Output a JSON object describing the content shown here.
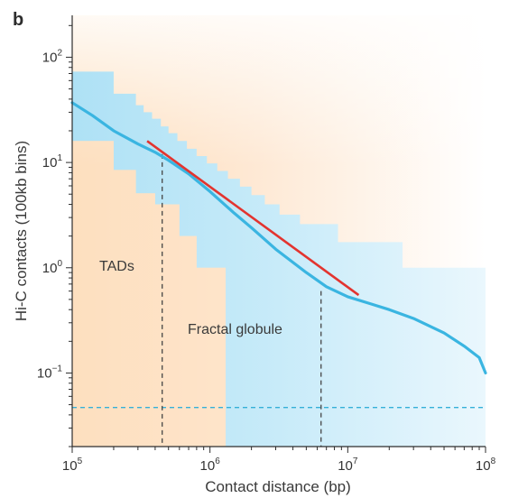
{
  "panel_label": "b",
  "colors": {
    "curve": "#3ab5e1",
    "fit": "#e3342f",
    "dashed_vertical": "#444444",
    "dashed_horizontal": "#35b0d8",
    "axis": "#2d2d2d",
    "orange_bg": "#fde7cf",
    "blue_band": "#c6eaf8"
  },
  "chart_data": {
    "type": "line",
    "xlabel": "Contact distance (bp)",
    "ylabel": "Hi-C contacts (100kb bins)",
    "xscale": "log",
    "yscale": "log",
    "xlim": [
      100000,
      100000000
    ],
    "ylim": [
      0.02,
      250
    ],
    "grid": false,
    "x_ticks": [
      {
        "base": "10",
        "exp": "5",
        "value": 100000
      },
      {
        "base": "10",
        "exp": "6",
        "value": 1000000
      },
      {
        "base": "10",
        "exp": "7",
        "value": 10000000
      },
      {
        "base": "10",
        "exp": "8",
        "value": 100000000
      }
    ],
    "y_ticks": [
      {
        "base": "10",
        "exp": "2",
        "value": 100
      },
      {
        "base": "10",
        "exp": "1",
        "value": 10
      },
      {
        "base": "10",
        "exp": "0",
        "value": 1
      },
      {
        "base": "10",
        "exp": "−1",
        "value": 0.1
      }
    ],
    "series": [
      {
        "x": [
          100000,
          140000,
          200000,
          300000,
          400000,
          500000,
          700000,
          1000000,
          1500000,
          2000000,
          3000000,
          5000000,
          7000000,
          10000000,
          15000000,
          20000000,
          30000000,
          50000000,
          70000000,
          90000000,
          100000000
        ],
        "y": [
          37,
          28,
          20,
          15,
          12.5,
          10.5,
          7.8,
          5.3,
          3.3,
          2.4,
          1.5,
          0.9,
          0.66,
          0.53,
          0.45,
          0.4,
          0.33,
          0.24,
          0.18,
          0.14,
          0.1
        ]
      }
    ],
    "fit_line": {
      "x": [
        350000,
        12000000
      ],
      "y": [
        16,
        0.55
      ]
    },
    "error_band": {
      "upper": [
        [
          100000,
          73
        ],
        [
          200000,
          73
        ],
        [
          200000,
          45
        ],
        [
          290000,
          45
        ],
        [
          290000,
          35
        ],
        [
          330000,
          35
        ],
        [
          330000,
          30
        ],
        [
          380000,
          30
        ],
        [
          380000,
          26
        ],
        [
          440000,
          26
        ],
        [
          440000,
          22
        ],
        [
          500000,
          22
        ],
        [
          500000,
          19
        ],
        [
          580000,
          19
        ],
        [
          580000,
          16
        ],
        [
          680000,
          16
        ],
        [
          680000,
          13.5
        ],
        [
          800000,
          13.5
        ],
        [
          800000,
          11.5
        ],
        [
          950000,
          11.5
        ],
        [
          950000,
          9.8
        ],
        [
          1130000,
          9.8
        ],
        [
          1130000,
          8.3
        ],
        [
          1350000,
          8.3
        ],
        [
          1350000,
          7
        ],
        [
          1650000,
          7
        ],
        [
          1650000,
          5.9
        ],
        [
          2000000,
          5.9
        ],
        [
          2000000,
          4.9
        ],
        [
          2500000,
          4.9
        ],
        [
          2500000,
          4
        ],
        [
          3200000,
          4
        ],
        [
          3200000,
          3.2
        ],
        [
          4500000,
          3.2
        ],
        [
          4500000,
          2.6
        ],
        [
          8500000,
          2.6
        ],
        [
          8500000,
          1.75
        ],
        [
          25000000,
          1.75
        ],
        [
          25000000,
          1
        ],
        [
          100000000,
          1
        ]
      ],
      "lower": [
        [
          100000,
          16
        ],
        [
          200000,
          16
        ],
        [
          200000,
          8.5
        ],
        [
          290000,
          8.5
        ],
        [
          290000,
          5.1
        ],
        [
          400000,
          5.1
        ],
        [
          400000,
          4
        ],
        [
          600000,
          4
        ],
        [
          600000,
          2
        ],
        [
          800000,
          2
        ],
        [
          800000,
          1
        ],
        [
          1300000,
          1
        ],
        [
          1300000,
          0.02
        ]
      ]
    },
    "vertical_markers": [
      450000,
      6400000
    ],
    "horizontal_marker": 0.047,
    "annotations": [
      "TADs",
      "Fractal globule"
    ]
  }
}
